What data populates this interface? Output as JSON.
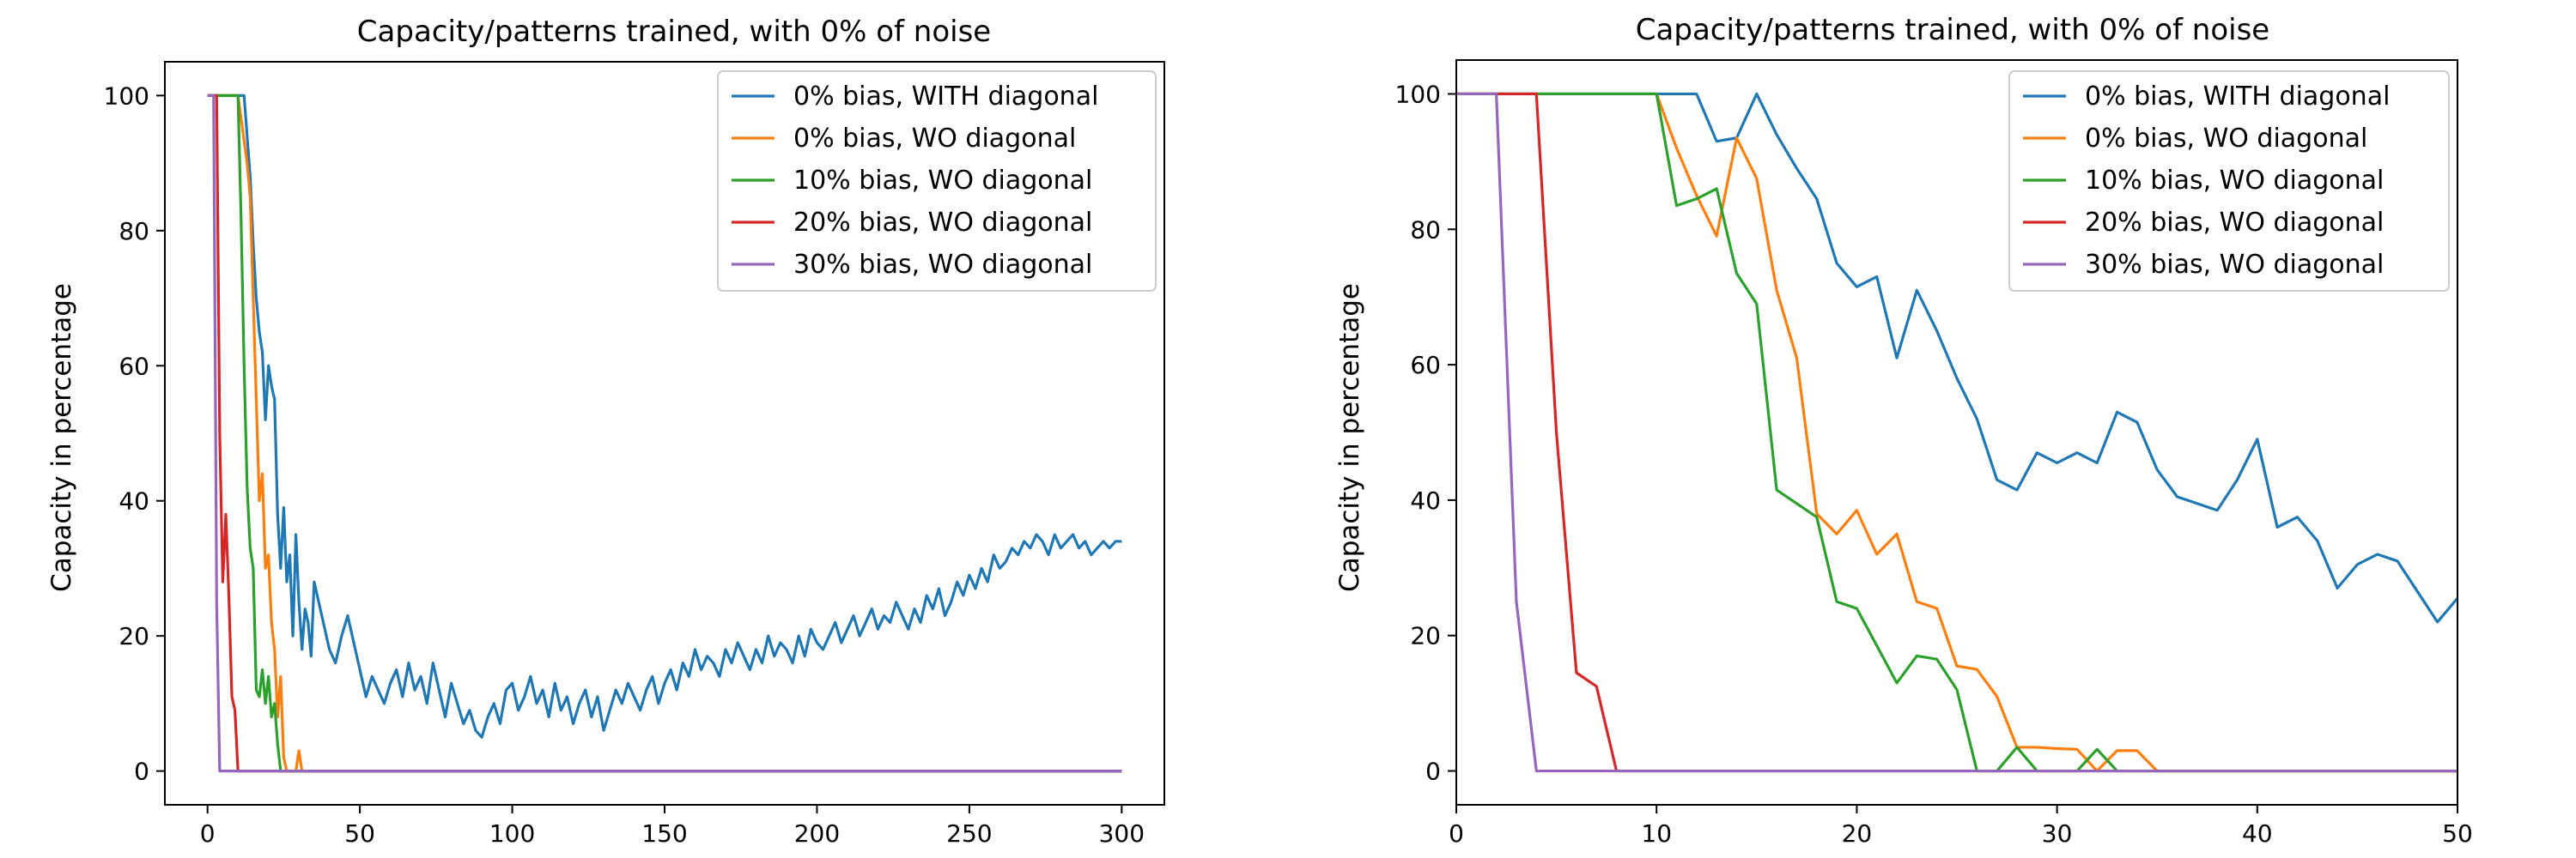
{
  "colors": {
    "blue": "#1f77b4",
    "orange": "#ff7f0e",
    "green": "#2ca02c",
    "red": "#d62728",
    "purple": "#9467bd"
  },
  "chart_data": [
    {
      "type": "line",
      "title": "Capacity/patterns trained, with 0% of noise",
      "xlabel": "",
      "ylabel": "Capacity in percentage",
      "xlim": [
        -14,
        314
      ],
      "ylim": [
        -5,
        105
      ],
      "xticks": [
        0,
        50,
        100,
        150,
        200,
        250,
        300
      ],
      "yticks": [
        0,
        20,
        40,
        60,
        80,
        100
      ],
      "grid": false,
      "legend": "upper right",
      "series": [
        {
          "name": "0% bias, WITH diagonal",
          "color": "#1f77b4",
          "x": [
            1,
            12,
            14,
            15,
            16,
            17,
            18,
            19,
            20,
            21,
            22,
            23,
            24,
            25,
            26,
            27,
            28,
            29,
            30,
            31,
            32,
            33,
            34,
            35,
            36,
            38,
            40,
            42,
            44,
            46,
            48,
            50,
            52,
            54,
            56,
            58,
            60,
            62,
            64,
            66,
            68,
            70,
            72,
            74,
            76,
            78,
            80,
            82,
            84,
            86,
            88,
            90,
            92,
            94,
            96,
            98,
            100,
            102,
            104,
            106,
            108,
            110,
            112,
            114,
            116,
            118,
            120,
            122,
            124,
            126,
            128,
            130,
            132,
            134,
            136,
            138,
            140,
            142,
            144,
            146,
            148,
            150,
            152,
            154,
            156,
            158,
            160,
            162,
            164,
            166,
            168,
            170,
            172,
            174,
            176,
            178,
            180,
            182,
            184,
            186,
            188,
            190,
            192,
            194,
            196,
            198,
            200,
            202,
            204,
            206,
            208,
            210,
            212,
            214,
            216,
            218,
            220,
            222,
            224,
            226,
            228,
            230,
            232,
            234,
            236,
            238,
            240,
            242,
            244,
            246,
            248,
            250,
            252,
            254,
            256,
            258,
            260,
            262,
            264,
            266,
            268,
            270,
            272,
            274,
            276,
            278,
            280,
            282,
            284,
            286,
            288,
            290,
            292,
            294,
            296,
            298,
            300
          ],
          "y": [
            100,
            100,
            88,
            78,
            70,
            65,
            62,
            52,
            60,
            57,
            55,
            38,
            30,
            39,
            28,
            32,
            20,
            35,
            25,
            18,
            24,
            22,
            17,
            28,
            26,
            22,
            18,
            16,
            20,
            23,
            19,
            15,
            11,
            14,
            12,
            10,
            13,
            15,
            11,
            16,
            12,
            14,
            10,
            16,
            12,
            8,
            13,
            10,
            7,
            9,
            6,
            5,
            8,
            10,
            7,
            12,
            13,
            9,
            11,
            14,
            10,
            12,
            8,
            13,
            9,
            11,
            7,
            10,
            12,
            8,
            11,
            6,
            9,
            12,
            10,
            13,
            11,
            9,
            12,
            14,
            10,
            13,
            15,
            12,
            16,
            14,
            18,
            15,
            17,
            16,
            14,
            18,
            16,
            19,
            17,
            15,
            18,
            16,
            20,
            17,
            19,
            18,
            16,
            20,
            17,
            21,
            19,
            18,
            20,
            22,
            19,
            21,
            23,
            20,
            22,
            24,
            21,
            23,
            22,
            25,
            23,
            21,
            24,
            22,
            26,
            24,
            27,
            23,
            25,
            28,
            26,
            29,
            27,
            30,
            28,
            32,
            30,
            31,
            33,
            32,
            34,
            33,
            35,
            34,
            32,
            35,
            33,
            34,
            35,
            33,
            34,
            32,
            33,
            34,
            33,
            34,
            34
          ]
        },
        {
          "name": "0% bias, WO diagonal",
          "color": "#ff7f0e",
          "x": [
            0,
            10,
            13,
            14,
            15,
            16,
            17,
            18,
            19,
            20,
            21,
            22,
            23,
            24,
            25,
            26,
            27,
            28,
            29,
            30,
            31,
            300
          ],
          "y": [
            100,
            100,
            90,
            85,
            70,
            55,
            40,
            44,
            30,
            32,
            22,
            18,
            8,
            14,
            2,
            0,
            0,
            0,
            0,
            3,
            0,
            0
          ]
        },
        {
          "name": "10% bias, WO diagonal",
          "color": "#2ca02c",
          "x": [
            0,
            10,
            11,
            12,
            13,
            14,
            15,
            16,
            17,
            18,
            19,
            20,
            21,
            22,
            23,
            24,
            25,
            300
          ],
          "y": [
            100,
            100,
            82,
            60,
            42,
            33,
            30,
            12,
            11,
            15,
            10,
            14,
            8,
            10,
            4,
            0,
            0,
            0
          ]
        },
        {
          "name": "20% bias, WO diagonal",
          "color": "#d62728",
          "x": [
            0,
            3,
            4,
            5,
            6,
            7,
            8,
            9,
            10,
            300
          ],
          "y": [
            100,
            100,
            50,
            28,
            38,
            26,
            11,
            9,
            0,
            0
          ]
        },
        {
          "name": "30% bias, WO diagonal",
          "color": "#9467bd",
          "x": [
            0,
            2,
            3,
            4,
            300
          ],
          "y": [
            100,
            100,
            25,
            0,
            0
          ]
        }
      ]
    },
    {
      "type": "line",
      "title": "Capacity/patterns trained, with 0% of noise",
      "xlabel": "",
      "ylabel": "Capacity in percentage",
      "xlim": [
        0,
        50
      ],
      "ylim": [
        -5,
        105
      ],
      "xticks": [
        0,
        10,
        20,
        30,
        40,
        50
      ],
      "yticks": [
        0,
        20,
        40,
        60,
        80,
        100
      ],
      "grid": false,
      "legend": "upper right",
      "series": [
        {
          "name": "0% bias, WITH diagonal",
          "color": "#1f77b4",
          "x": [
            0,
            10,
            11,
            12,
            13,
            14,
            15,
            16,
            17,
            18,
            19,
            20,
            21,
            22,
            23,
            24,
            25,
            26,
            27,
            28,
            29,
            30,
            31,
            32,
            33,
            34,
            35,
            36,
            37,
            38,
            39,
            40,
            41,
            42,
            43,
            44,
            45,
            46,
            47,
            48,
            49,
            50
          ],
          "y": [
            100,
            100,
            100,
            100,
            93,
            93.5,
            100,
            94,
            89,
            84.5,
            75,
            71.5,
            73,
            61,
            71,
            65,
            58,
            52,
            43,
            41.5,
            47,
            45.5,
            47,
            45.5,
            53,
            51.5,
            44.5,
            40.5,
            39.5,
            38.5,
            43,
            49,
            36,
            37.5,
            34,
            27,
            30.5,
            32,
            31,
            26.5,
            22,
            25.5
          ]
        },
        {
          "name": "0% bias, WO diagonal",
          "color": "#ff7f0e",
          "x": [
            0,
            10,
            11,
            12,
            13,
            14,
            15,
            16,
            17,
            18,
            19,
            20,
            21,
            22,
            23,
            24,
            25,
            26,
            27,
            28,
            29,
            30,
            31,
            32,
            33,
            34,
            35,
            36,
            37,
            40,
            45,
            50
          ],
          "y": [
            100,
            100,
            92,
            85,
            79,
            93.5,
            87.5,
            71,
            61,
            38,
            35,
            38.5,
            32,
            35,
            25,
            24,
            15.5,
            15,
            11,
            3.5,
            3.5,
            3.3,
            3.2,
            0,
            3,
            3,
            0,
            0,
            0,
            0,
            0,
            0
          ]
        },
        {
          "name": "10% bias, WO diagonal",
          "color": "#2ca02c",
          "x": [
            0,
            10,
            11,
            12,
            13,
            14,
            15,
            16,
            17,
            18,
            19,
            20,
            21,
            22,
            23,
            24,
            25,
            26,
            27,
            28,
            29,
            30,
            31,
            32,
            33,
            35,
            40,
            45,
            50
          ],
          "y": [
            100,
            100,
            83.5,
            84.5,
            86,
            73.5,
            69,
            41.5,
            39.5,
            37.5,
            25,
            24,
            18.5,
            13,
            17,
            16.5,
            12,
            0,
            0,
            3.5,
            0,
            0,
            0,
            3.2,
            0,
            0,
            0,
            0,
            0
          ]
        },
        {
          "name": "20% bias, WO diagonal",
          "color": "#d62728",
          "x": [
            0,
            4,
            5,
            6,
            7,
            8,
            9,
            50
          ],
          "y": [
            100,
            100,
            50,
            14.5,
            12.5,
            0,
            0,
            0
          ]
        },
        {
          "name": "30% bias, WO diagonal",
          "color": "#9467bd",
          "x": [
            0,
            2,
            3,
            4,
            5,
            50
          ],
          "y": [
            100,
            100,
            25,
            0,
            0,
            0
          ]
        }
      ]
    }
  ]
}
